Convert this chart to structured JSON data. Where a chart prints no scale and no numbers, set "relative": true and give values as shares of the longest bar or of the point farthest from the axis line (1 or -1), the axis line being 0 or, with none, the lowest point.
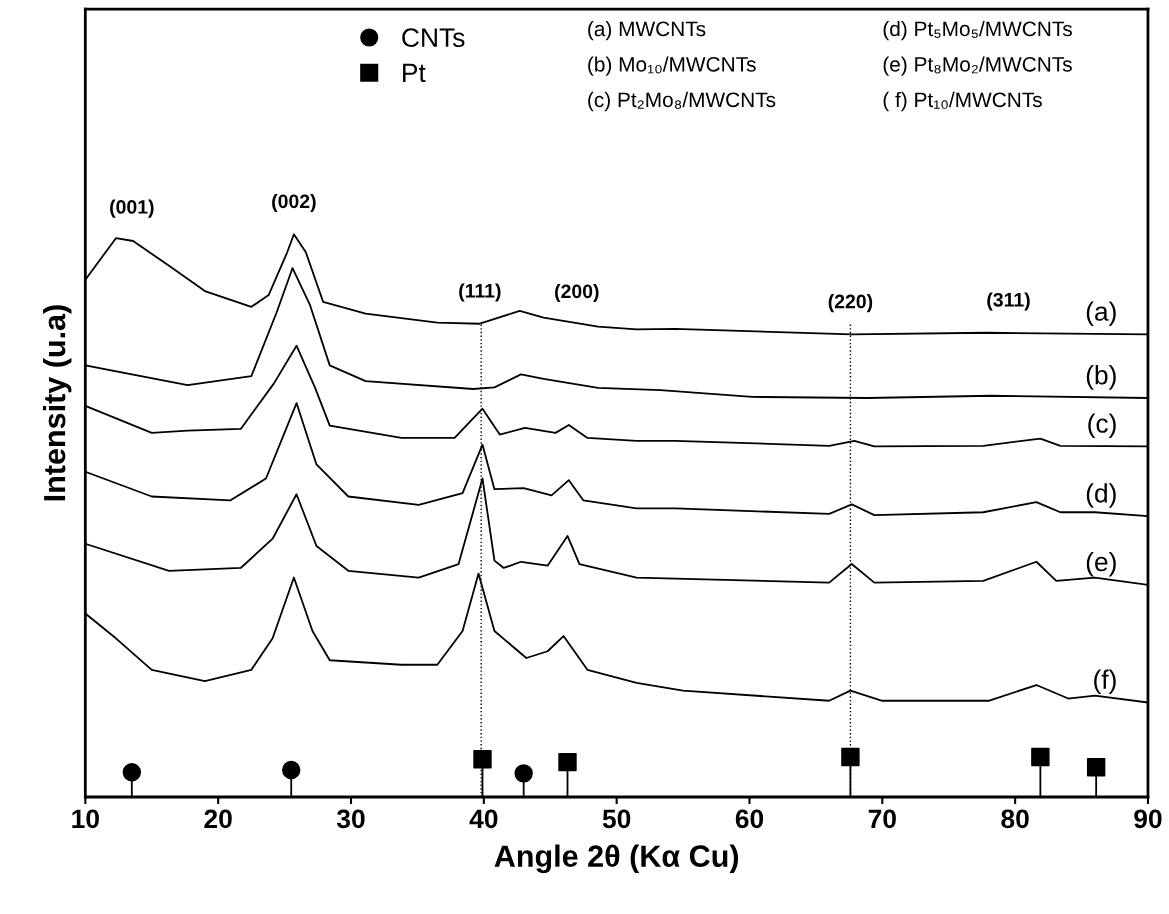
{
  "chart_data": {
    "type": "line",
    "relative": true,
    "xlabel": "Angle 2θ (Kα Cu)",
    "ylabel": "Intensity (u.a)",
    "xlim": [
      10,
      90
    ],
    "xticks": [
      10,
      20,
      30,
      40,
      50,
      60,
      70,
      80,
      90
    ],
    "tick_labels": "x",
    "grid": false,
    "legend": "top",
    "marker": "none",
    "line_style": "solid",
    "series": [
      {
        "name": "(a)",
        "color": "#000000",
        "x": [
          10,
          12.3,
          13.6,
          16.3,
          19.0,
          22.5,
          23.8,
          25.2,
          25.7,
          26.6,
          27.9,
          31.1,
          36.5,
          39.7,
          42.7,
          44.5,
          48.6,
          51.5,
          54.4,
          67.7,
          77.9,
          90
        ],
        "values": [
          0.919,
          0.993,
          0.988,
          0.944,
          0.899,
          0.871,
          0.892,
          0.968,
          1.0,
          0.968,
          0.88,
          0.859,
          0.843,
          0.841,
          0.864,
          0.852,
          0.836,
          0.831,
          0.832,
          0.822,
          0.825,
          0.822
        ]
      },
      {
        "name": "(b)",
        "color": "#000000",
        "x": [
          10,
          17.7,
          22.5,
          24.4,
          25.6,
          26.9,
          28.4,
          31.1,
          39.2,
          40.8,
          42.8,
          44.5,
          48.6,
          53.3,
          60.2,
          68.9,
          78.2,
          90
        ],
        "values": [
          0.767,
          0.732,
          0.748,
          0.861,
          0.94,
          0.875,
          0.767,
          0.739,
          0.725,
          0.728,
          0.751,
          0.743,
          0.727,
          0.723,
          0.711,
          0.709,
          0.713,
          0.709
        ]
      },
      {
        "name": "(c)",
        "color": "#000000",
        "x": [
          10,
          15.0,
          17.7,
          21.7,
          24.2,
          25.9,
          27.3,
          28.4,
          33.8,
          37.8,
          39.9,
          41.2,
          43.1,
          45.4,
          46.4,
          47.8,
          51.5,
          54.4,
          66.0,
          67.9,
          69.4,
          77.6,
          81.9,
          83.4,
          90
        ],
        "values": [
          0.695,
          0.647,
          0.651,
          0.654,
          0.735,
          0.802,
          0.727,
          0.66,
          0.638,
          0.638,
          0.69,
          0.644,
          0.656,
          0.647,
          0.661,
          0.638,
          0.633,
          0.633,
          0.624,
          0.633,
          0.623,
          0.624,
          0.637,
          0.624,
          0.623
        ]
      },
      {
        "name": "(d)",
        "color": "#000000",
        "x": [
          10,
          15.0,
          20.9,
          23.6,
          25.9,
          27.4,
          29.8,
          35.1,
          38.4,
          39.9,
          40.8,
          43.0,
          45.1,
          46.4,
          47.5,
          51.5,
          54.4,
          66.0,
          67.7,
          69.4,
          77.6,
          81.6,
          83.4,
          86.0,
          90
        ],
        "values": [
          0.578,
          0.534,
          0.527,
          0.566,
          0.7,
          0.591,
          0.534,
          0.519,
          0.54,
          0.626,
          0.547,
          0.549,
          0.536,
          0.563,
          0.527,
          0.513,
          0.513,
          0.503,
          0.52,
          0.501,
          0.506,
          0.524,
          0.506,
          0.506,
          0.499
        ]
      },
      {
        "name": "(e)",
        "color": "#000000",
        "x": [
          10,
          16.3,
          21.7,
          24.1,
          25.9,
          27.4,
          29.8,
          35.1,
          38.1,
          39.9,
          40.8,
          41.5,
          42.8,
          44.8,
          46.3,
          47.2,
          51.5,
          54.4,
          66.0,
          67.7,
          69.4,
          77.6,
          81.6,
          83.1,
          86.0,
          90
        ],
        "values": [
          0.45,
          0.402,
          0.407,
          0.459,
          0.538,
          0.446,
          0.402,
          0.39,
          0.414,
          0.566,
          0.42,
          0.407,
          0.418,
          0.411,
          0.464,
          0.414,
          0.39,
          0.388,
          0.381,
          0.414,
          0.381,
          0.384,
          0.418,
          0.384,
          0.39,
          0.377
        ]
      },
      {
        "name": "(f)",
        "color": "#000000",
        "x": [
          10,
          12.3,
          15.0,
          19.0,
          22.5,
          24.1,
          25.7,
          27.1,
          28.4,
          33.8,
          36.5,
          38.4,
          39.6,
          40.8,
          43.2,
          44.8,
          46.0,
          47.8,
          51.5,
          55,
          66,
          67.6,
          70,
          78,
          81.6,
          84,
          86,
          90
        ],
        "values": [
          0.326,
          0.282,
          0.226,
          0.206,
          0.226,
          0.282,
          0.39,
          0.295,
          0.243,
          0.235,
          0.235,
          0.295,
          0.397,
          0.295,
          0.247,
          0.259,
          0.286,
          0.226,
          0.203,
          0.189,
          0.171,
          0.189,
          0.171,
          0.171,
          0.199,
          0.175,
          0.18,
          0.168
        ]
      },
      {
        "name": "CNTs",
        "type": "lollipop",
        "marker": "circle",
        "color": "#000000",
        "x": [
          13.5,
          25.5,
          43.0
        ],
        "values": [
          0.044,
          0.048,
          0.042
        ]
      },
      {
        "name": "Pt",
        "type": "lollipop",
        "marker": "square",
        "color": "#000000",
        "x": [
          39.9,
          46.3,
          67.6,
          81.9,
          86.1
        ],
        "values": [
          0.067,
          0.062,
          0.071,
          0.071,
          0.053
        ]
      }
    ],
    "ref_lines": [
      {
        "axis": "x",
        "value": 39.8,
        "line_style": "dotted",
        "color": "#000000"
      },
      {
        "axis": "x",
        "value": 67.6,
        "line_style": "dotted",
        "color": "#000000"
      }
    ],
    "annotations": [
      {
        "text": "(001)",
        "x": 13.5,
        "y": 0.99
      },
      {
        "text": "(002)",
        "x": 25.7,
        "y": 1.0
      },
      {
        "text": "(111)",
        "x": 39.7,
        "y": 0.841
      },
      {
        "text": "(200)",
        "x": 47.0,
        "y": 0.84
      },
      {
        "text": "(220)",
        "x": 67.6,
        "y": 0.822
      },
      {
        "text": "(311)",
        "x": 79.5,
        "y": 0.825
      },
      "(a) MWCNTs",
      "(b) Mo₁₀/MWCNTs",
      "(c) Pt₂Mo₈/MWCNTs",
      "(d) Pt₅Mo₅/MWCNTs",
      "(e) Pt₈Mo₂/MWCNTs",
      "( f) Pt₁₀/MWCNTs"
    ]
  }
}
